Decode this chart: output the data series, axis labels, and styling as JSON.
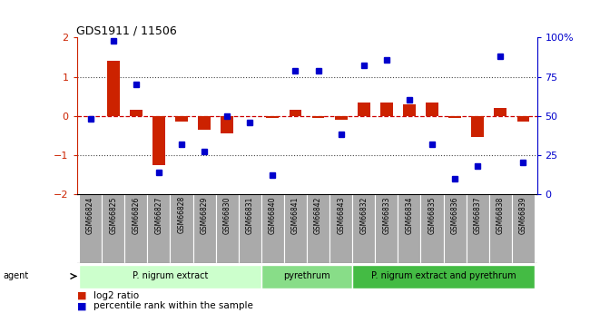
{
  "title": "GDS1911 / 11506",
  "samples": [
    "GSM66824",
    "GSM66825",
    "GSM66826",
    "GSM66827",
    "GSM66828",
    "GSM66829",
    "GSM66830",
    "GSM66831",
    "GSM66840",
    "GSM66841",
    "GSM66842",
    "GSM66843",
    "GSM66832",
    "GSM66833",
    "GSM66834",
    "GSM66835",
    "GSM66836",
    "GSM66837",
    "GSM66838",
    "GSM66839"
  ],
  "log2_ratio": [
    0.0,
    1.4,
    0.15,
    -1.25,
    -0.15,
    -0.35,
    -0.45,
    0.0,
    -0.05,
    0.15,
    -0.05,
    -0.1,
    0.35,
    0.35,
    0.3,
    0.35,
    -0.05,
    -0.55,
    0.2,
    -0.15
  ],
  "percentile": [
    48,
    98,
    70,
    14,
    32,
    27,
    50,
    46,
    12,
    79,
    79,
    38,
    82,
    86,
    60,
    32,
    10,
    18,
    88,
    20
  ],
  "groups": [
    {
      "label": "P. nigrum extract",
      "start": 0,
      "end": 7,
      "color": "#ccffcc"
    },
    {
      "label": "pyrethrum",
      "start": 8,
      "end": 11,
      "color": "#88dd88"
    },
    {
      "label": "P. nigrum extract and pyrethrum",
      "start": 12,
      "end": 19,
      "color": "#44bb44"
    }
  ],
  "ylim_left": [
    -2,
    2
  ],
  "ylim_right": [
    0,
    100
  ],
  "bar_color": "#cc2200",
  "dot_color": "#0000cc",
  "zero_line_color": "#cc0000",
  "grid_color": "#444444",
  "bg_color": "#ffffff",
  "xlabel_bg": "#aaaaaa",
  "agent_label": "agent",
  "legend_items": [
    {
      "label": "log2 ratio",
      "color": "#cc2200"
    },
    {
      "label": "percentile rank within the sample",
      "color": "#0000cc"
    }
  ]
}
